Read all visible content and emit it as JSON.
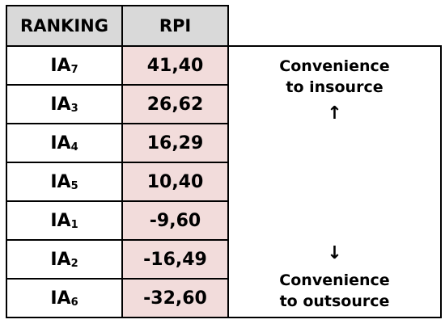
{
  "table": {
    "headers": {
      "ranking": "RANKING",
      "rpi": "RPI"
    },
    "rows": [
      {
        "label": "IA",
        "sub": "7",
        "rpi": "41,40"
      },
      {
        "label": "IA",
        "sub": "3",
        "rpi": "26,62"
      },
      {
        "label": "IA",
        "sub": "4",
        "rpi": "16,29"
      },
      {
        "label": "IA",
        "sub": "5",
        "rpi": "10,40"
      },
      {
        "label": "IA",
        "sub": "1",
        "rpi": "-9,60"
      },
      {
        "label": "IA",
        "sub": "2",
        "rpi": "-16,49"
      },
      {
        "label": "IA",
        "sub": "6",
        "rpi": "-32,60"
      }
    ]
  },
  "note": {
    "top_line1": "Convenience",
    "top_line2": "to insource",
    "up_arrow": "↑",
    "down_arrow": "↓",
    "bottom_line1": "Convenience",
    "bottom_line2": "to outsource"
  }
}
